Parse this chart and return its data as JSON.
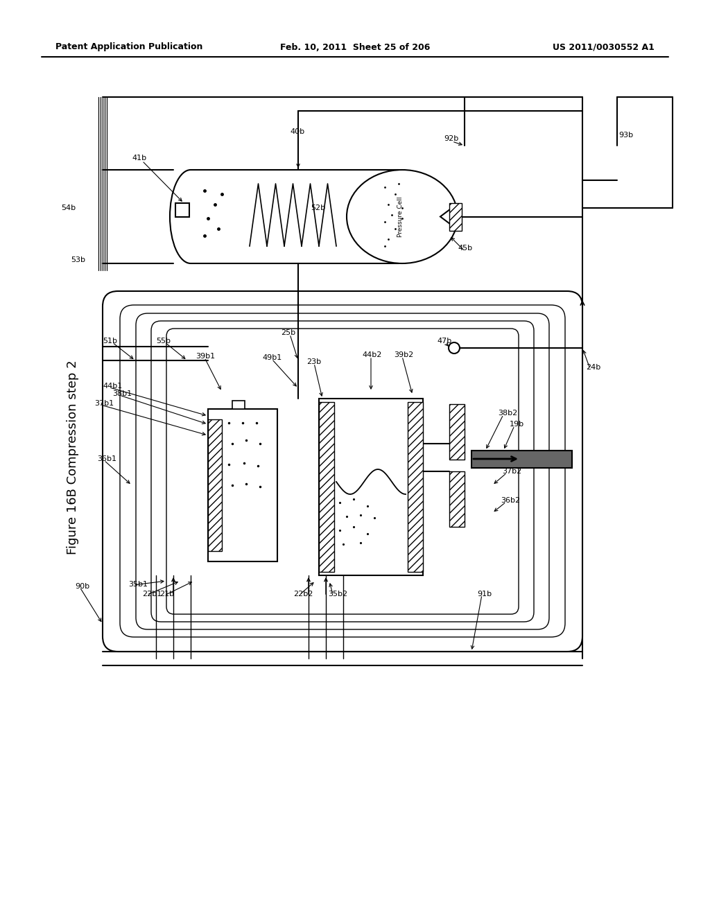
{
  "header_left": "Patent Application Publication",
  "header_mid": "Feb. 10, 2011  Sheet 25 of 206",
  "header_right": "US 2011/0030552 A1",
  "figure_title": "Figure 16B Compression step 2",
  "bg_color": "#ffffff",
  "line_color": "#000000",
  "hatch_color": "#000000"
}
